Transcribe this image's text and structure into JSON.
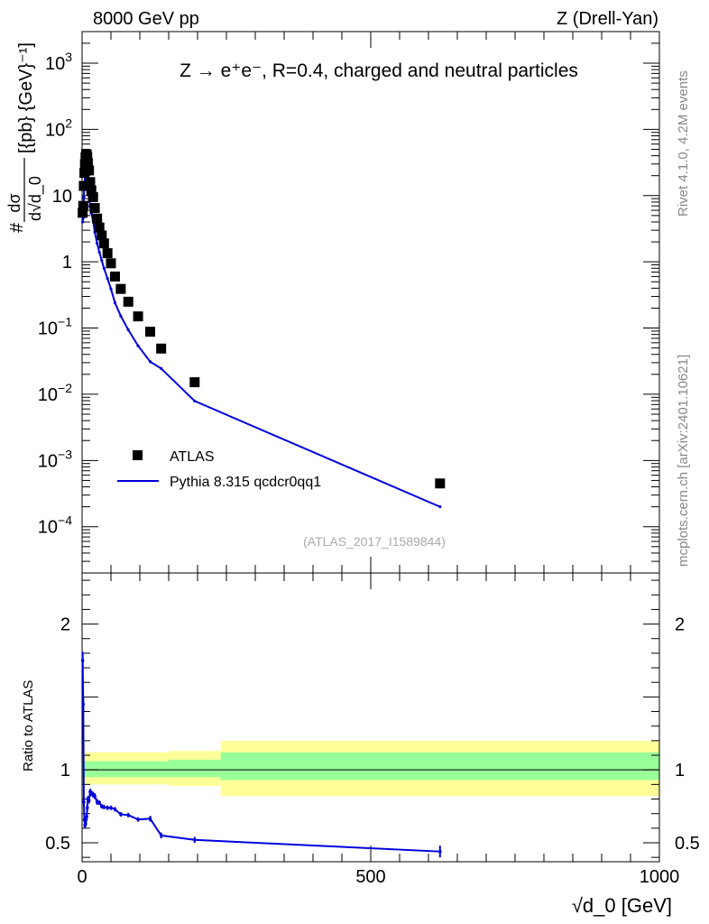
{
  "header": {
    "left": "8000 GeV pp",
    "right": "Z (Drell-Yan)"
  },
  "side_labels": {
    "rivet": "Rivet 4.1.0,  4.2M events",
    "mcplots": "mcplots.cern.ch [arXiv:2401.10621]"
  },
  "chart_data": {
    "type": "scatter",
    "title": "Z → e⁺e⁻, R=0.4, charged and neutral particles",
    "analysis_id": "(ATLAS_2017_I1589844)",
    "xlabel": "√d_0 [GeV]",
    "ylabel": "dσ/d√d_0 [{pb} {GeV}⁻¹]",
    "ratio_ylabel": "Ratio to ATLAS",
    "xlim": [
      0,
      1000
    ],
    "ylim": [
      2e-05,
      3000
    ],
    "ylog": true,
    "ratio_ylim": [
      0.37,
      2.35
    ],
    "main_ticks": [
      {
        "base": "10",
        "exp": "3",
        "value": 1000
      },
      {
        "base": "10",
        "exp": "2",
        "value": 100
      },
      {
        "base": "10",
        "exp": "",
        "value": 10
      },
      {
        "base": "1",
        "exp": "",
        "value": 1
      },
      {
        "base": "10",
        "exp": "−1",
        "value": 0.1
      },
      {
        "base": "10",
        "exp": "−2",
        "value": 0.01
      },
      {
        "base": "10",
        "exp": "−3",
        "value": 0.001
      },
      {
        "base": "10",
        "exp": "−4",
        "value": 0.0001
      }
    ],
    "x_ticks": [
      {
        "label": "0",
        "value": 0
      },
      {
        "label": "500",
        "value": 500
      },
      {
        "label": "1000",
        "value": 1000
      }
    ],
    "ratio_ticks": [
      {
        "label": "2",
        "value": 2
      },
      {
        "label": "1",
        "value": 1
      },
      {
        "label": "0.5",
        "value": 0.5
      }
    ],
    "legend": {
      "data_label": "ATLAS",
      "mc_label": "Pythia 8.315 qcdcr0qq1",
      "position": "lower-left"
    },
    "colors": {
      "data": "#000000",
      "mc": "#0000dd",
      "band_inner": "#99ff99",
      "band_outer": "#ffff99"
    },
    "data_points": [
      {
        "x": 1,
        "y": 5.5
      },
      {
        "x": 2,
        "y": 7
      },
      {
        "x": 3,
        "y": 14
      },
      {
        "x": 4,
        "y": 22
      },
      {
        "x": 5,
        "y": 30
      },
      {
        "x": 6,
        "y": 38
      },
      {
        "x": 7,
        "y": 42
      },
      {
        "x": 8,
        "y": 42
      },
      {
        "x": 9,
        "y": 38
      },
      {
        "x": 10,
        "y": 31
      },
      {
        "x": 12,
        "y": 24
      },
      {
        "x": 14,
        "y": 16
      },
      {
        "x": 16,
        "y": 12
      },
      {
        "x": 19,
        "y": 9.5
      },
      {
        "x": 22,
        "y": 6.5
      },
      {
        "x": 26,
        "y": 4.5
      },
      {
        "x": 30,
        "y": 3.3
      },
      {
        "x": 34,
        "y": 2.5
      },
      {
        "x": 38,
        "y": 1.9
      },
      {
        "x": 44,
        "y": 1.35
      },
      {
        "x": 50,
        "y": 0.95
      },
      {
        "x": 57,
        "y": 0.6
      },
      {
        "x": 67,
        "y": 0.39
      },
      {
        "x": 80,
        "y": 0.25
      },
      {
        "x": 97,
        "y": 0.15
      },
      {
        "x": 118,
        "y": 0.088
      },
      {
        "x": 137,
        "y": 0.049
      },
      {
        "x": 195,
        "y": 0.0152
      },
      {
        "x": 620,
        "y": 0.00045
      }
    ],
    "mc_points": [
      {
        "x": 1,
        "y": 4.0
      },
      {
        "x": 2,
        "y": 4.6
      },
      {
        "x": 3,
        "y": 9.5
      },
      {
        "x": 4,
        "y": 14.5
      },
      {
        "x": 5,
        "y": 19
      },
      {
        "x": 6,
        "y": 22
      },
      {
        "x": 7,
        "y": 22
      },
      {
        "x": 8,
        "y": 19
      },
      {
        "x": 9,
        "y": 16
      },
      {
        "x": 10,
        "y": 13
      },
      {
        "x": 12,
        "y": 10
      },
      {
        "x": 14,
        "y": 6.7
      },
      {
        "x": 16,
        "y": 5.4
      },
      {
        "x": 19,
        "y": 4.2
      },
      {
        "x": 22,
        "y": 2.8
      },
      {
        "x": 26,
        "y": 1.9
      },
      {
        "x": 30,
        "y": 1.39
      },
      {
        "x": 34,
        "y": 1.05
      },
      {
        "x": 38,
        "y": 0.8
      },
      {
        "x": 44,
        "y": 0.56
      },
      {
        "x": 50,
        "y": 0.39
      },
      {
        "x": 57,
        "y": 0.24
      },
      {
        "x": 67,
        "y": 0.152
      },
      {
        "x": 80,
        "y": 0.094
      },
      {
        "x": 97,
        "y": 0.054
      },
      {
        "x": 118,
        "y": 0.031
      },
      {
        "x": 137,
        "y": 0.0245
      },
      {
        "x": 195,
        "y": 0.0079
      },
      {
        "x": 620,
        "y": 0.0002
      }
    ],
    "ratio_points": [
      {
        "x": 1,
        "y": 1.75,
        "err": 0.06
      },
      {
        "x": 2,
        "y": 1.45,
        "err": 0.05
      },
      {
        "x": 3,
        "y": 0.78,
        "err": 0.03
      },
      {
        "x": 4,
        "y": 0.66,
        "err": 0.02
      },
      {
        "x": 5,
        "y": 0.62,
        "err": 0.02
      },
      {
        "x": 6,
        "y": 0.63,
        "err": 0.02
      },
      {
        "x": 7,
        "y": 0.66,
        "err": 0.02
      },
      {
        "x": 8,
        "y": 0.68,
        "err": 0.02
      },
      {
        "x": 9,
        "y": 0.74,
        "err": 0.02
      },
      {
        "x": 10,
        "y": 0.8,
        "err": 0.02
      },
      {
        "x": 12,
        "y": 0.79,
        "err": 0.02
      },
      {
        "x": 14,
        "y": 0.85,
        "err": 0.02
      },
      {
        "x": 16,
        "y": 0.84,
        "err": 0.02
      },
      {
        "x": 19,
        "y": 0.83,
        "err": 0.02
      },
      {
        "x": 22,
        "y": 0.82,
        "err": 0.02
      },
      {
        "x": 26,
        "y": 0.78,
        "err": 0.02
      },
      {
        "x": 30,
        "y": 0.775,
        "err": 0.015
      },
      {
        "x": 34,
        "y": 0.75,
        "err": 0.015
      },
      {
        "x": 38,
        "y": 0.745,
        "err": 0.015
      },
      {
        "x": 44,
        "y": 0.74,
        "err": 0.015
      },
      {
        "x": 50,
        "y": 0.74,
        "err": 0.015
      },
      {
        "x": 57,
        "y": 0.73,
        "err": 0.015
      },
      {
        "x": 67,
        "y": 0.695,
        "err": 0.015
      },
      {
        "x": 80,
        "y": 0.69,
        "err": 0.015
      },
      {
        "x": 97,
        "y": 0.66,
        "err": 0.015
      },
      {
        "x": 118,
        "y": 0.665,
        "err": 0.02
      },
      {
        "x": 137,
        "y": 0.55,
        "err": 0.02
      },
      {
        "x": 195,
        "y": 0.52,
        "err": 0.02
      },
      {
        "x": 620,
        "y": 0.44,
        "err": 0.04
      }
    ],
    "ratio_band": [
      {
        "x0": 0,
        "x1": 150,
        "inner_lo": 0.95,
        "inner_hi": 1.06,
        "outer_lo": 0.9,
        "outer_hi": 1.12
      },
      {
        "x0": 150,
        "x1": 240,
        "inner_lo": 0.95,
        "inner_hi": 1.07,
        "outer_lo": 0.89,
        "outer_hi": 1.13
      },
      {
        "x0": 240,
        "x1": 1000,
        "inner_lo": 0.93,
        "inner_hi": 1.12,
        "outer_lo": 0.82,
        "outer_hi": 1.2
      }
    ]
  }
}
